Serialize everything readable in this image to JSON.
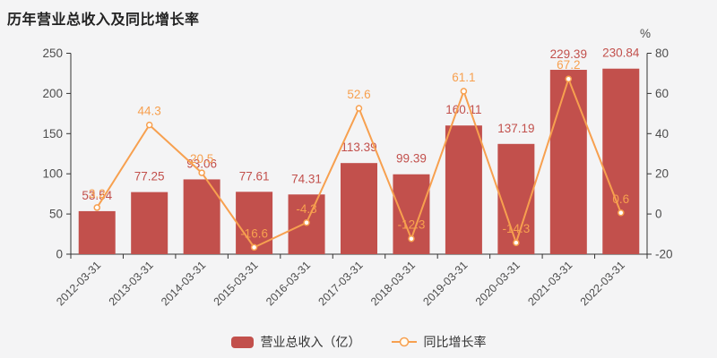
{
  "title": "历年营业总收入及同比增长率",
  "legend": {
    "bar_label": "营业总收入（亿）",
    "line_label": "同比增长率"
  },
  "colors": {
    "background": "#f4f4f5",
    "bar": "#c2504c",
    "bar_label": "#c2504c",
    "line": "#f7a04f",
    "line_label": "#f7a04f",
    "marker_fill": "#ffffff",
    "axis": "#333333",
    "axis_text": "#4d4d4d",
    "title_text": "#222222"
  },
  "chart_data": {
    "type": "bar+line combo",
    "title": "历年营业总收入及同比增长率",
    "categories": [
      "2012-03-31",
      "2013-03-31",
      "2014-03-31",
      "2015-03-31",
      "2016-03-31",
      "2017-03-31",
      "2018-03-31",
      "2019-03-31",
      "2020-03-31",
      "2021-03-31",
      "2022-03-31"
    ],
    "series": [
      {
        "name": "营业总收入（亿）",
        "type": "bar",
        "y_axis": "left",
        "values": [
          53.54,
          77.25,
          93.06,
          77.61,
          74.31,
          113.39,
          99.39,
          160.11,
          137.19,
          229.39,
          230.84
        ],
        "labels": [
          "53.54",
          "77.25",
          "93.06",
          "77.61",
          "74.31",
          "113.39",
          "99.39",
          "160.11",
          "137.19",
          "229.39",
          "230.84"
        ]
      },
      {
        "name": "同比增长率",
        "type": "line",
        "y_axis": "right",
        "values": [
          3.2,
          44.3,
          20.5,
          -16.6,
          -4.3,
          52.6,
          -12.3,
          61.1,
          -14.3,
          67.2,
          0.6
        ],
        "labels": [
          "3.2",
          "44.3",
          "20.5",
          "-16.6",
          "-4.3",
          "52.6",
          "-12.3",
          "61.1",
          "-14.3",
          "67.2",
          "0.6"
        ]
      }
    ],
    "left_axis": {
      "min": 0,
      "max": 250,
      "ticks": [
        0,
        50,
        100,
        150,
        200,
        250
      ]
    },
    "right_axis": {
      "min": -20,
      "max": 80,
      "ticks": [
        -20,
        0,
        20,
        40,
        60,
        80
      ],
      "unit": "%"
    },
    "grid": false,
    "legend_position": "bottom"
  }
}
